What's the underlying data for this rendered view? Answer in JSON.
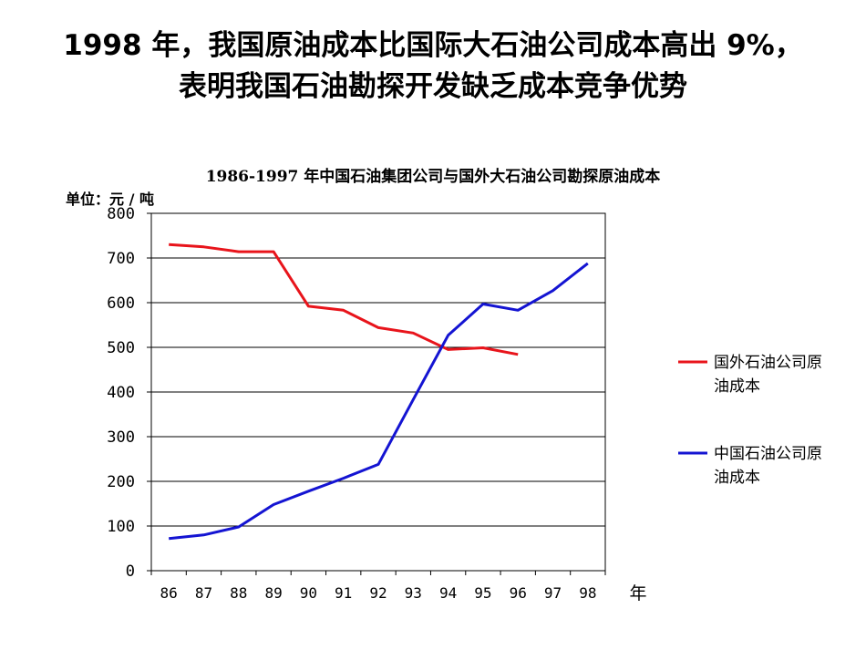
{
  "slide_title": "1998 年，我国原油成本比国际大石油公司成本高出 9%，表明我国石油勘探开发缺乏成本竞争优势",
  "unit_label": "单位：元 / 吨",
  "chart_data": {
    "type": "line",
    "title": "1986-1997 年中国石油集团公司与国外大石油公司勘探原油成本",
    "xlabel": "年",
    "ylabel": "单位：元 / 吨",
    "categories": [
      "86",
      "87",
      "88",
      "89",
      "90",
      "91",
      "92",
      "93",
      "94",
      "95",
      "96",
      "97",
      "98"
    ],
    "ylim": [
      0,
      800
    ],
    "yticks": [
      0,
      100,
      200,
      300,
      400,
      500,
      600,
      700,
      800
    ],
    "grid": true,
    "legend_position": "right",
    "series": [
      {
        "name": "国外石油公司原油成本",
        "color": "#e8141b",
        "values": [
          730,
          725,
          714,
          714,
          592,
          583,
          544,
          532,
          495,
          499,
          484,
          null,
          null
        ]
      },
      {
        "name": "中国石油公司原油成本",
        "color": "#1414d2",
        "values": [
          72,
          80,
          98,
          148,
          178,
          207,
          238,
          383,
          527,
          597,
          583,
          627,
          688
        ]
      }
    ]
  }
}
